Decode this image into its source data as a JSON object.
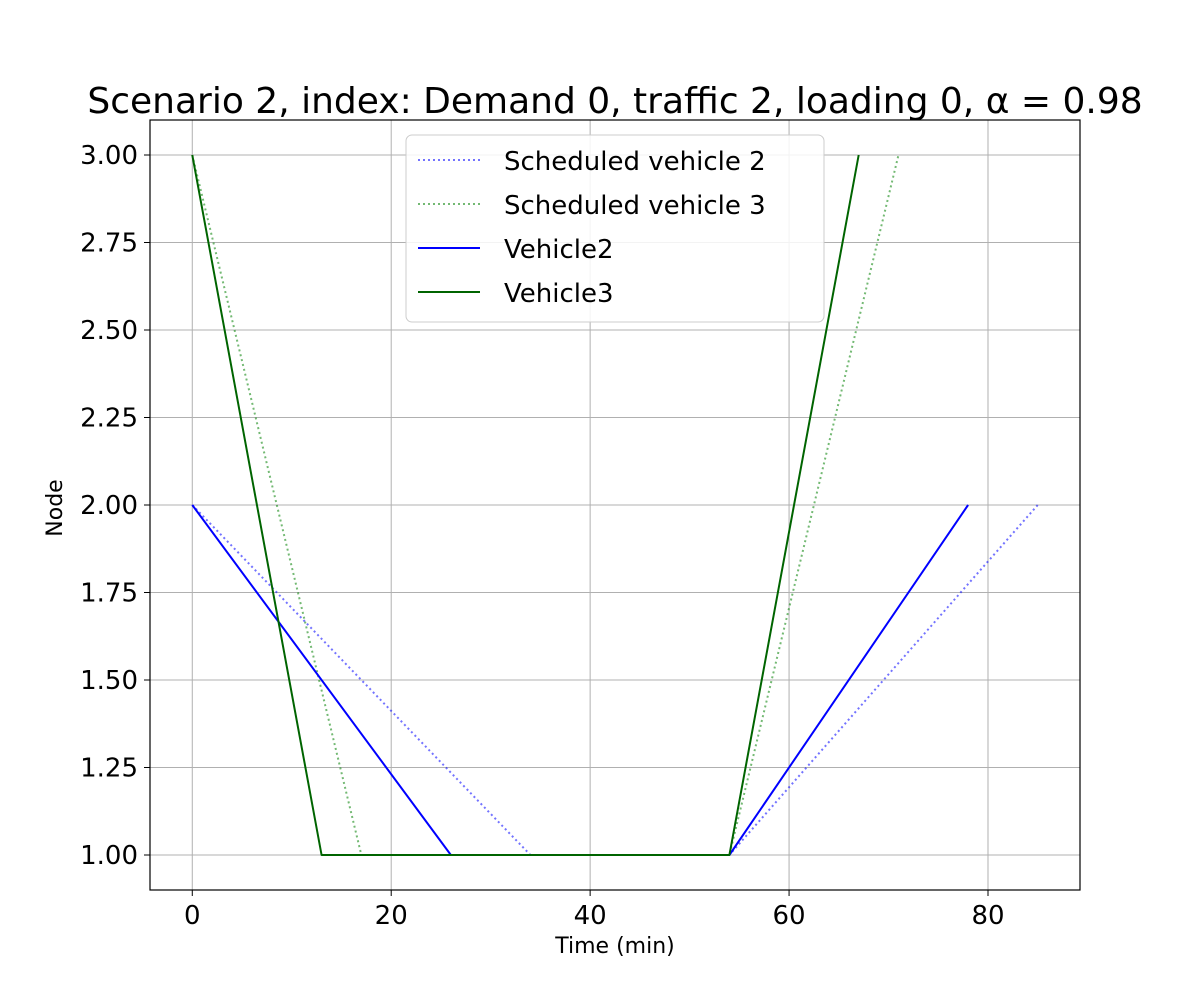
{
  "chart_data": {
    "type": "line",
    "title": "Scenario 2, index: Demand 0, traffic 2, loading 0, α = 0.98",
    "xlabel": "Time (min)",
    "ylabel": "Node",
    "xlim": [
      -4.25,
      89.25
    ],
    "ylim": [
      0.9,
      3.1
    ],
    "xticks": [
      0,
      20,
      40,
      60,
      80
    ],
    "xtick_labels": [
      "0",
      "20",
      "40",
      "60",
      "80"
    ],
    "yticks": [
      1.0,
      1.25,
      1.5,
      1.75,
      2.0,
      2.25,
      2.5,
      2.75,
      3.0
    ],
    "ytick_labels": [
      "1.00",
      "1.25",
      "1.50",
      "1.75",
      "2.00",
      "2.25",
      "2.50",
      "2.75",
      "3.00"
    ],
    "grid": true,
    "legend_position": "upper-center",
    "series": [
      {
        "name": "Scheduled vehicle 2",
        "color": "#0000ff",
        "style": "dotted",
        "opacity": 0.55,
        "x": [
          0,
          34,
          54,
          85
        ],
        "y": [
          2,
          1,
          1,
          2
        ]
      },
      {
        "name": "Scheduled vehicle 3",
        "color": "#008000",
        "style": "dotted",
        "opacity": 0.55,
        "x": [
          0,
          17,
          54,
          71
        ],
        "y": [
          3,
          1,
          1,
          3
        ]
      },
      {
        "name": "Vehicle2",
        "color": "#0000ff",
        "style": "solid",
        "opacity": 1,
        "x": [
          0,
          26,
          54,
          78
        ],
        "y": [
          2,
          1,
          1,
          2
        ]
      },
      {
        "name": "Vehicle3",
        "color": "#006400",
        "style": "solid",
        "opacity": 1,
        "x": [
          0,
          13,
          54,
          67
        ],
        "y": [
          3,
          1,
          1,
          3
        ]
      }
    ]
  }
}
